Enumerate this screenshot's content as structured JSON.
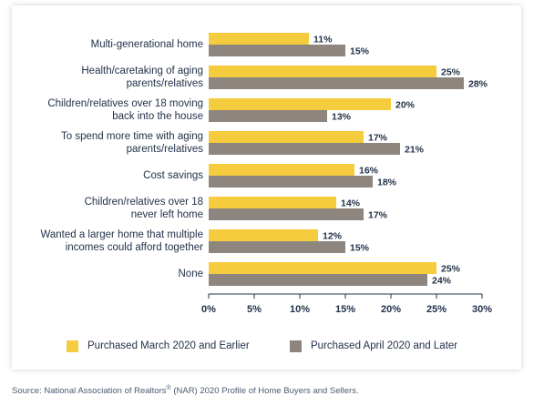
{
  "chart_data": {
    "type": "bar",
    "orientation": "horizontal",
    "categories": [
      "Multi-generational home",
      "Health/caretaking of aging parents/relatives",
      "Children/relatives over 18 moving back into the house",
      "To spend more time with aging parents/relatives",
      "Cost savings",
      "Children/relatives over 18 never left home",
      "Wanted a larger home that multiple incomes could afford together",
      "None"
    ],
    "category_lines": [
      [
        "Multi-generational home"
      ],
      [
        "Health/caretaking of aging",
        "parents/relatives"
      ],
      [
        "Children/relatives over 18 moving",
        "back into the house"
      ],
      [
        "To spend more time with aging",
        "parents/relatives"
      ],
      [
        "Cost savings"
      ],
      [
        "Children/relatives over 18",
        "never left home"
      ],
      [
        "Wanted a larger home that multiple",
        "incomes could afford together"
      ],
      [
        "None"
      ]
    ],
    "series": [
      {
        "name": "Purchased March 2020 and Earlier",
        "color": "#f5cc3d",
        "values": [
          11,
          25,
          20,
          17,
          16,
          14,
          12,
          25
        ]
      },
      {
        "name": "Purchased April 2020 and Later",
        "color": "#8e857f",
        "values": [
          15,
          28,
          13,
          21,
          18,
          17,
          15,
          24
        ]
      }
    ],
    "xlim": [
      0,
      30
    ],
    "xticks": [
      "0%",
      "5%",
      "10%",
      "15%",
      "20%",
      "25%",
      "30%"
    ],
    "value_suffix": "%",
    "legend_position": "bottom",
    "grid": false
  },
  "source": {
    "prefix": "Source: National Association of Realtors",
    "sup": "®",
    "suffix": " (NAR) 2020 Profile of Home Buyers and Sellers."
  }
}
